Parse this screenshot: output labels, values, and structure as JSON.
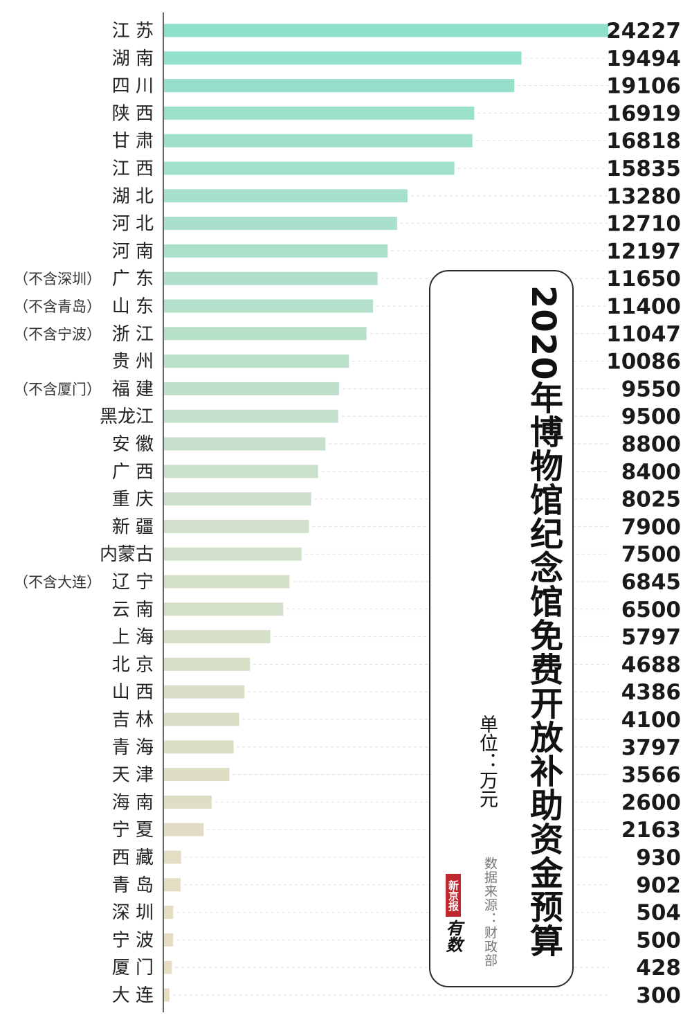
{
  "chart_data": {
    "type": "bar",
    "orientation": "horizontal",
    "title": "2020年博物馆纪念馆免费开放补助资金预算",
    "unit": "单位：万元",
    "source": "数据来源：财政部",
    "categories": [
      "江 苏",
      "湖 南",
      "四 川",
      "陕 西",
      "甘 肃",
      "江 西",
      "湖 北",
      "河 北",
      "河 南",
      "广 东",
      "山 东",
      "浙 江",
      "贵 州",
      "福 建",
      "黑龙江",
      "安 徽",
      "广 西",
      "重 庆",
      "新 疆",
      "内蒙古",
      "辽 宁",
      "云 南",
      "上 海",
      "北 京",
      "山 西",
      "吉 林",
      "青 海",
      "天 津",
      "海 南",
      "宁 夏",
      "西 藏",
      "青 岛",
      "深 圳",
      "宁 波",
      "厦 门",
      "大 连"
    ],
    "notes": [
      "",
      "",
      "",
      "",
      "",
      "",
      "",
      "",
      "",
      "（不含深圳）",
      "（不含青岛）",
      "（不含宁波）",
      "",
      "（不含厦门）",
      "",
      "",
      "",
      "",
      "",
      "",
      "（不含大连）",
      "",
      "",
      "",
      "",
      "",
      "",
      "",
      "",
      "",
      "",
      "",
      "",
      "",
      "",
      ""
    ],
    "values": [
      24227,
      19494,
      19106,
      16919,
      16818,
      15835,
      13280,
      12710,
      12197,
      11650,
      11400,
      11047,
      10086,
      9550,
      9500,
      8800,
      8400,
      8025,
      7900,
      7500,
      6845,
      6500,
      5797,
      4688,
      4386,
      4100,
      3797,
      3566,
      2600,
      2163,
      930,
      902,
      504,
      500,
      428,
      300
    ],
    "xlim": [
      0,
      24227
    ],
    "grid": "dashed horizontal guide lines",
    "colors": {
      "top": "#8fe0cb",
      "mid": "#cfe0cb",
      "bottom": "#eadcc0"
    }
  },
  "logo": {
    "red_text": "新京报",
    "text": "有数"
  }
}
